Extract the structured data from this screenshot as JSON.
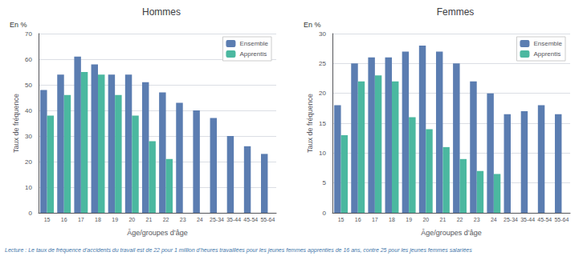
{
  "chart_data": [
    {
      "type": "bar",
      "title": "Hommes",
      "xlabel": "Âge/groupes d’âge",
      "ylabel": "Taux de fréquence",
      "annotations": [
        "En %"
      ],
      "categories": [
        "15",
        "16",
        "17",
        "18",
        "19",
        "20",
        "21",
        "22",
        "23",
        "24",
        "25-34",
        "35-44",
        "45-54",
        "55-64"
      ],
      "series": [
        {
          "name": "Ensemble",
          "color": "#5b7db1",
          "values": [
            48,
            54,
            61,
            58,
            54,
            54,
            51,
            47,
            43,
            40,
            37,
            30,
            26,
            23
          ]
        },
        {
          "name": "Apprentis",
          "color": "#4bb8a0",
          "values": [
            38,
            46,
            55,
            54,
            46,
            38,
            28,
            21,
            null,
            null,
            null,
            null,
            null,
            null
          ]
        }
      ],
      "ylim": [
        0,
        70
      ],
      "yticks": [
        0,
        10,
        20,
        30,
        40,
        50,
        60,
        70
      ],
      "grid": true,
      "legend": "upper right"
    },
    {
      "type": "bar",
      "title": "Femmes",
      "xlabel": "Âge/groupes d’âge",
      "ylabel": "Taux de fréquence",
      "annotations": [
        "En %"
      ],
      "categories": [
        "15",
        "16",
        "17",
        "18",
        "19",
        "20",
        "21",
        "22",
        "23",
        "24",
        "25-34",
        "35-44",
        "45-54",
        "55-64"
      ],
      "series": [
        {
          "name": "Ensemble",
          "color": "#5b7db1",
          "values": [
            18,
            25,
            26,
            26,
            27,
            28,
            27,
            25,
            22,
            20,
            16.5,
            17,
            18,
            16.5
          ]
        },
        {
          "name": "Apprentis",
          "color": "#4bb8a0",
          "values": [
            13,
            22,
            23,
            22,
            16,
            14,
            11,
            9,
            7,
            6.5,
            null,
            null,
            null,
            null
          ]
        }
      ],
      "ylim": [
        0,
        30
      ],
      "yticks": [
        0,
        5,
        10,
        15,
        20,
        25,
        30
      ],
      "grid": true,
      "legend": "upper right"
    }
  ],
  "note": "Lecture : Le taux de fréquence d’accidents du travail est de 22 pour 1 million d’heures travaillées pour les jeunes femmes apprenties de 16 ans, contre 25 pour les jeunes femmes salariées"
}
